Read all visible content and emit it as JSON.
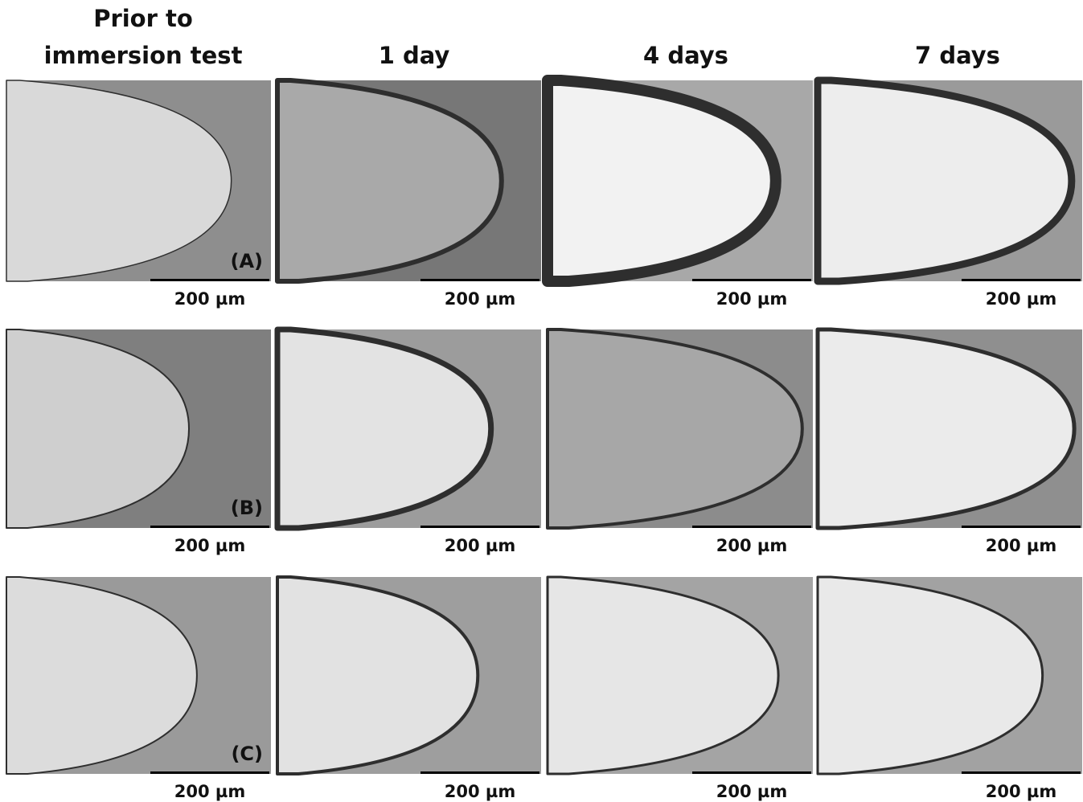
{
  "columns": [
    "Prior to immersion test",
    "1 day",
    "4 days",
    "7 days"
  ],
  "rows": [
    {
      "label": "(A)",
      "panels": [
        {
          "scale_label": "200 µm"
        },
        {
          "scale_label": "200 µm"
        },
        {
          "scale_label": "200 µm"
        },
        {
          "scale_label": "200 µm"
        }
      ]
    },
    {
      "label": "(B)",
      "panels": [
        {
          "scale_label": "200 µm"
        },
        {
          "scale_label": "200 µm"
        },
        {
          "scale_label": "200 µm"
        },
        {
          "scale_label": "200 µm"
        }
      ]
    },
    {
      "label": "(C)",
      "panels": [
        {
          "scale_label": "200 µm"
        },
        {
          "scale_label": "200 µm"
        },
        {
          "scale_label": "200 µm"
        },
        {
          "scale_label": "200 µm"
        }
      ]
    }
  ]
}
